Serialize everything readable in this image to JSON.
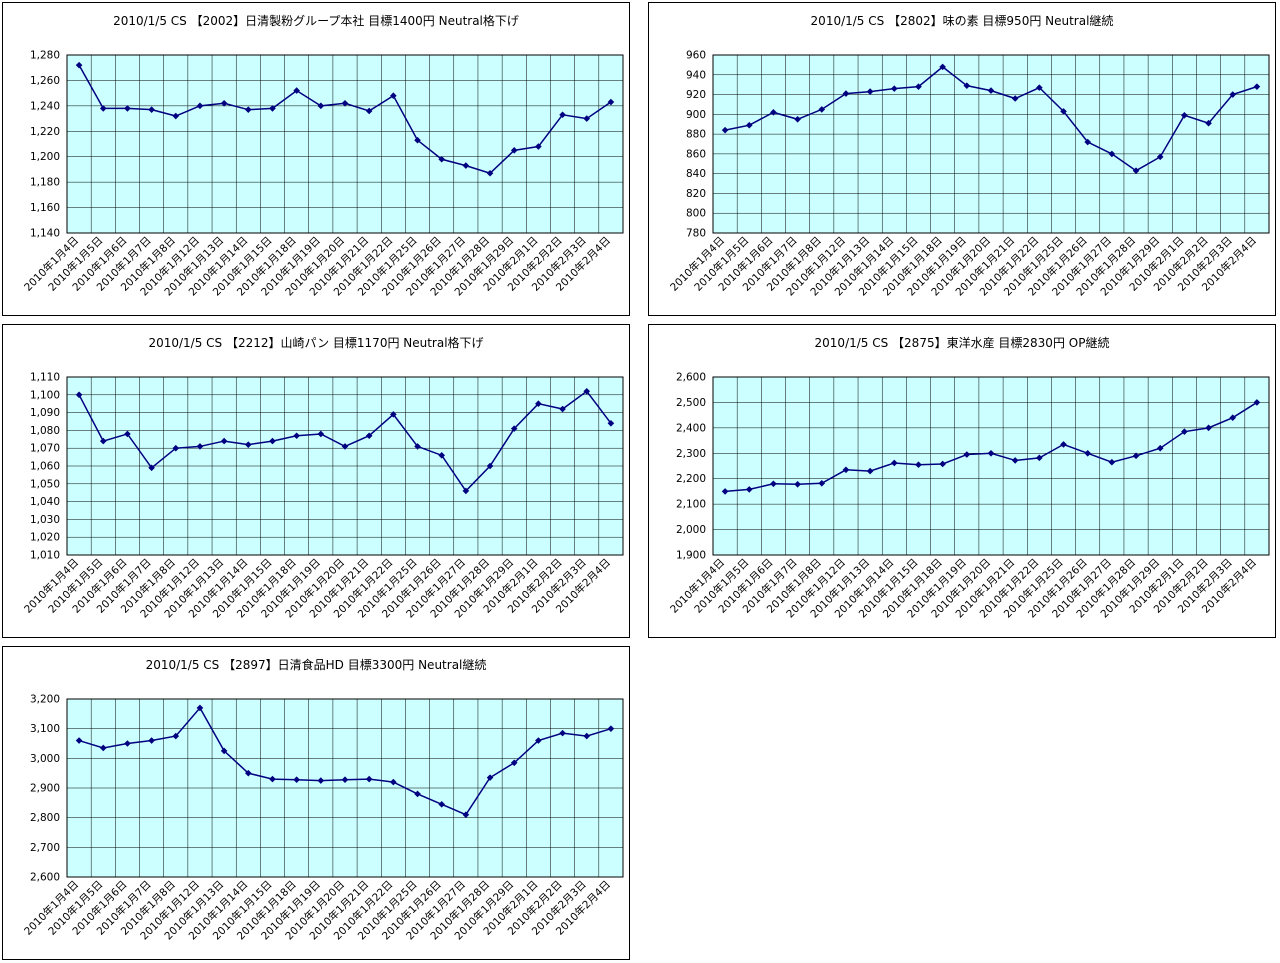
{
  "page": {
    "background": "#ffffff",
    "panel_border_color": "#000000"
  },
  "chart_data": [
    {
      "type": "line",
      "title": "2010/1/5 CS 【2002】日清製粉グループ本社 目標1400円 Neutral格下げ",
      "report_date": "2010/1/5",
      "broker": "CS",
      "stock_code": "2002",
      "stock_name": "日清製粉グループ本社",
      "target_price": "1400円",
      "rating": "Neutral格下げ",
      "series_color": "#000080",
      "plot_bg": "#ccffff",
      "grid": true,
      "legend": "none",
      "y_axis": {
        "min": 1140,
        "max": 1280,
        "step": 20
      },
      "categories": [
        "2010年1月4日",
        "2010年1月5日",
        "2010年1月6日",
        "2010年1月7日",
        "2010年1月8日",
        "2010年1月12日",
        "2010年1月13日",
        "2010年1月14日",
        "2010年1月15日",
        "2010年1月18日",
        "2010年1月19日",
        "2010年1月20日",
        "2010年1月21日",
        "2010年1月22日",
        "2010年1月25日",
        "2010年1月26日",
        "2010年1月27日",
        "2010年1月28日",
        "2010年1月29日",
        "2010年2月1日",
        "2010年2月2日",
        "2010年2月3日",
        "2010年2月4日"
      ],
      "values": [
        1272,
        1238,
        1238,
        1237,
        1232,
        1240,
        1242,
        1237,
        1238,
        1252,
        1240,
        1242,
        1236,
        1248,
        1213,
        1198,
        1193,
        1187,
        1205,
        1208,
        1233,
        1230,
        1243
      ]
    },
    {
      "type": "line",
      "title": "2010/1/5 CS 【2802】味の素 目標950円 Neutral継続",
      "report_date": "2010/1/5",
      "broker": "CS",
      "stock_code": "2802",
      "stock_name": "味の素",
      "target_price": "950円",
      "rating": "Neutral継続",
      "series_color": "#000080",
      "plot_bg": "#ccffff",
      "grid": true,
      "legend": "none",
      "y_axis": {
        "min": 780,
        "max": 960,
        "step": 20
      },
      "categories": [
        "2010年1月4日",
        "2010年1月5日",
        "2010年1月6日",
        "2010年1月7日",
        "2010年1月8日",
        "2010年1月12日",
        "2010年1月13日",
        "2010年1月14日",
        "2010年1月15日",
        "2010年1月18日",
        "2010年1月19日",
        "2010年1月20日",
        "2010年1月21日",
        "2010年1月22日",
        "2010年1月25日",
        "2010年1月26日",
        "2010年1月27日",
        "2010年1月28日",
        "2010年1月29日",
        "2010年2月1日",
        "2010年2月2日",
        "2010年2月3日",
        "2010年2月4日"
      ],
      "values": [
        884,
        889,
        902,
        895,
        905,
        921,
        923,
        926,
        928,
        948,
        929,
        924,
        916,
        927,
        903,
        872,
        860,
        843,
        857,
        899,
        891,
        920,
        928
      ]
    },
    {
      "type": "line",
      "title": "2010/1/5 CS 【2212】山崎パン 目標1170円 Neutral格下げ",
      "report_date": "2010/1/5",
      "broker": "CS",
      "stock_code": "2212",
      "stock_name": "山崎パン",
      "target_price": "1170円",
      "rating": "Neutral格下げ",
      "series_color": "#000080",
      "plot_bg": "#ccffff",
      "grid": true,
      "legend": "none",
      "y_axis": {
        "min": 1010,
        "max": 1110,
        "step": 10
      },
      "categories": [
        "2010年1月4日",
        "2010年1月5日",
        "2010年1月6日",
        "2010年1月7日",
        "2010年1月8日",
        "2010年1月12日",
        "2010年1月13日",
        "2010年1月14日",
        "2010年1月15日",
        "2010年1月18日",
        "2010年1月19日",
        "2010年1月20日",
        "2010年1月21日",
        "2010年1月22日",
        "2010年1月25日",
        "2010年1月26日",
        "2010年1月27日",
        "2010年1月28日",
        "2010年1月29日",
        "2010年2月1日",
        "2010年2月2日",
        "2010年2月3日",
        "2010年2月4日"
      ],
      "values": [
        1100,
        1074,
        1078,
        1059,
        1070,
        1071,
        1074,
        1072,
        1074,
        1077,
        1078,
        1071,
        1077,
        1089,
        1071,
        1066,
        1046,
        1060,
        1081,
        1095,
        1092,
        1102,
        1084
      ]
    },
    {
      "type": "line",
      "title": "2010/1/5 CS 【2875】東洋水産 目標2830円 OP継続",
      "report_date": "2010/1/5",
      "broker": "CS",
      "stock_code": "2875",
      "stock_name": "東洋水産",
      "target_price": "2830円",
      "rating": "OP継続",
      "series_color": "#000080",
      "plot_bg": "#ccffff",
      "grid": true,
      "legend": "none",
      "y_axis": {
        "min": 1900,
        "max": 2600,
        "step": 100
      },
      "categories": [
        "2010年1月4日",
        "2010年1月5日",
        "2010年1月6日",
        "2010年1月7日",
        "2010年1月8日",
        "2010年1月12日",
        "2010年1月13日",
        "2010年1月14日",
        "2010年1月15日",
        "2010年1月18日",
        "2010年1月19日",
        "2010年1月20日",
        "2010年1月21日",
        "2010年1月22日",
        "2010年1月25日",
        "2010年1月26日",
        "2010年1月27日",
        "2010年1月28日",
        "2010年1月29日",
        "2010年2月1日",
        "2010年2月2日",
        "2010年2月3日",
        "2010年2月4日"
      ],
      "values": [
        2150,
        2158,
        2180,
        2178,
        2182,
        2235,
        2230,
        2262,
        2255,
        2258,
        2295,
        2300,
        2272,
        2282,
        2335,
        2300,
        2265,
        2290,
        2320,
        2385,
        2400,
        2440,
        2500
      ]
    },
    {
      "type": "line",
      "title": "2010/1/5 CS 【2897】日清食品HD 目標3300円 Neutral継続",
      "report_date": "2010/1/5",
      "broker": "CS",
      "stock_code": "2897",
      "stock_name": "日清食品HD",
      "target_price": "3300円",
      "rating": "Neutral継続",
      "series_color": "#000080",
      "plot_bg": "#ccffff",
      "grid": true,
      "legend": "none",
      "y_axis": {
        "min": 2600,
        "max": 3200,
        "step": 100
      },
      "categories": [
        "2010年1月4日",
        "2010年1月5日",
        "2010年1月6日",
        "2010年1月7日",
        "2010年1月8日",
        "2010年1月12日",
        "2010年1月13日",
        "2010年1月14日",
        "2010年1月15日",
        "2010年1月18日",
        "2010年1月19日",
        "2010年1月20日",
        "2010年1月21日",
        "2010年1月22日",
        "2010年1月25日",
        "2010年1月26日",
        "2010年1月27日",
        "2010年1月28日",
        "2010年1月29日",
        "2010年2月1日",
        "2010年2月2日",
        "2010年2月3日",
        "2010年2月4日"
      ],
      "values": [
        3060,
        3035,
        3050,
        3060,
        3075,
        3170,
        3025,
        2950,
        2930,
        2928,
        2925,
        2928,
        2930,
        2920,
        2880,
        2845,
        2810,
        2935,
        2985,
        3060,
        3085,
        3075,
        3100
      ]
    }
  ]
}
